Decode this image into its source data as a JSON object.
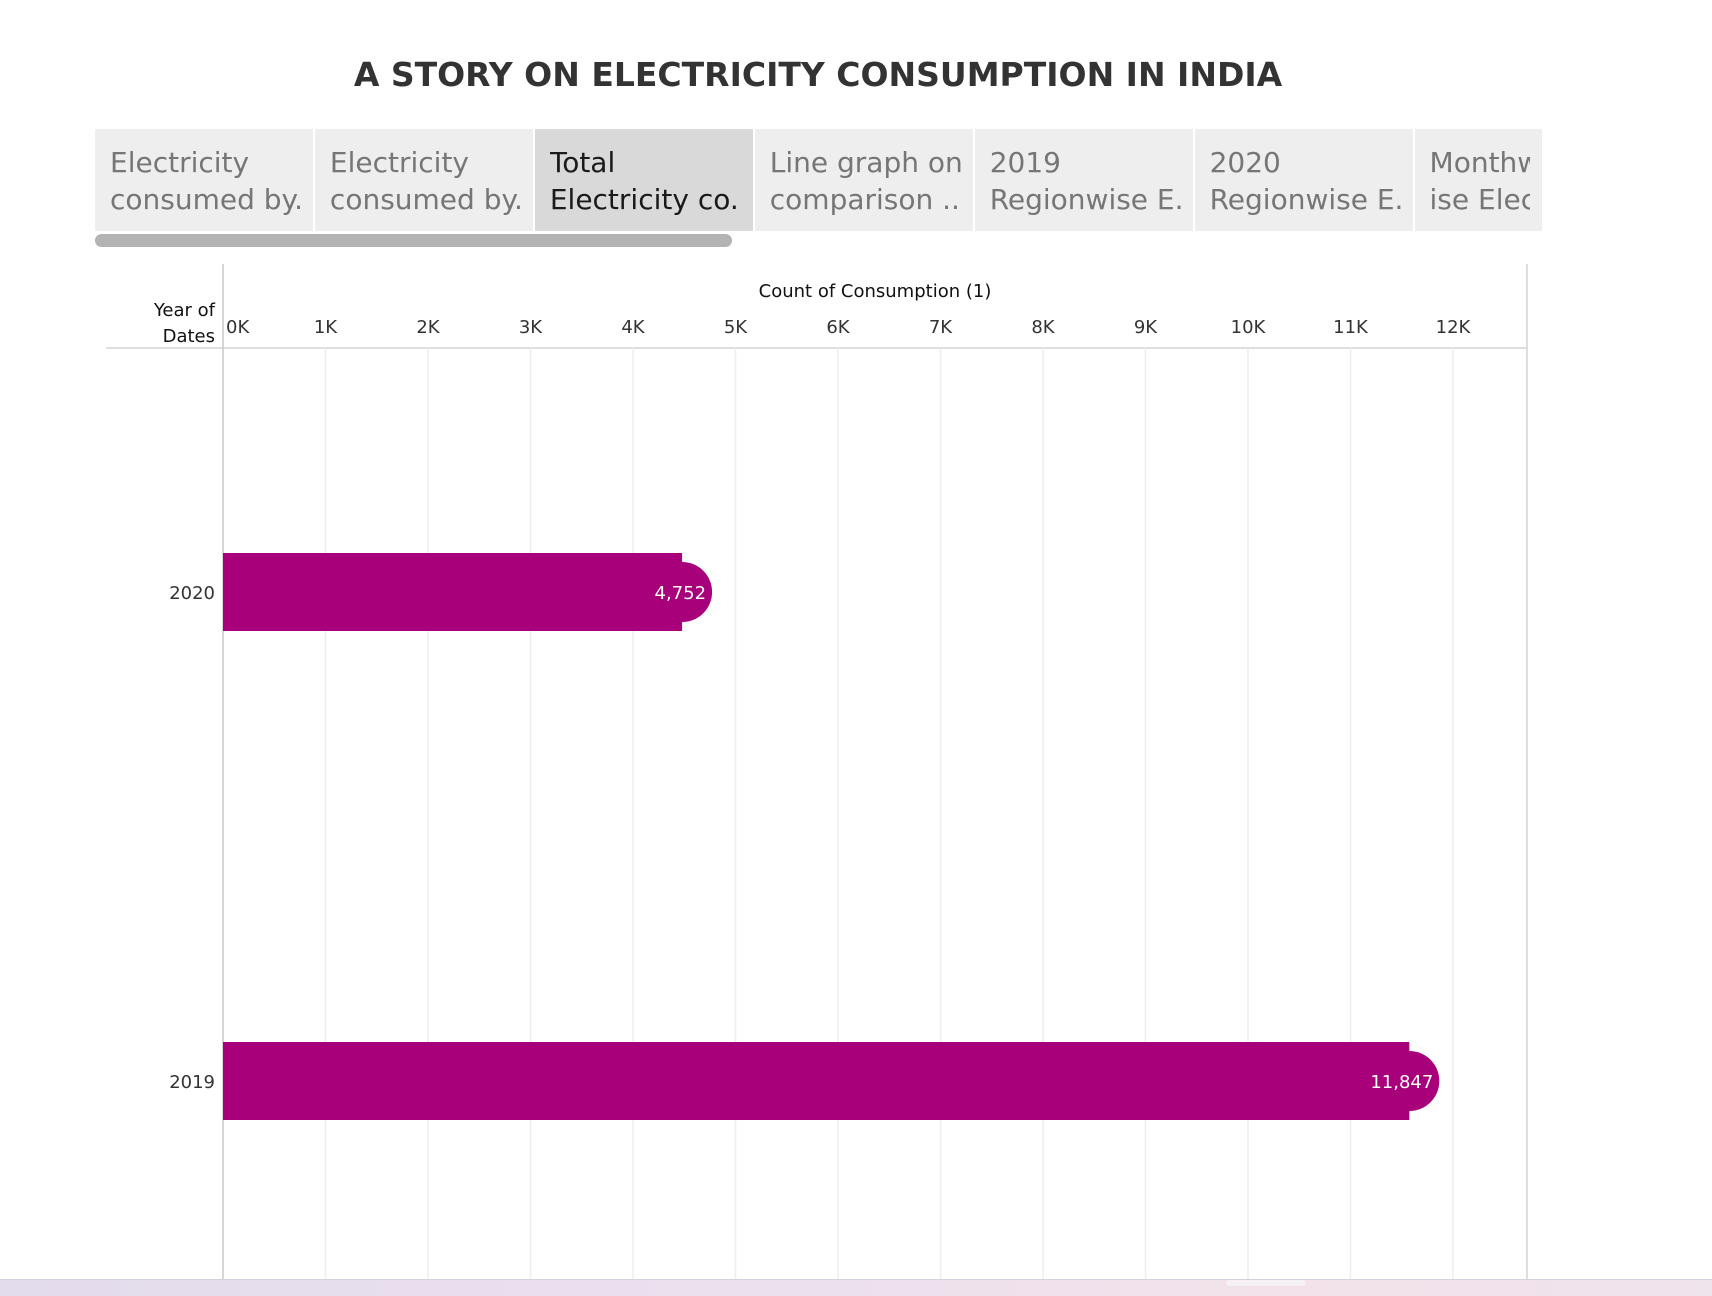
{
  "story": {
    "title": "A STORY ON ELECTRICITY CONSUMPTION IN INDIA",
    "tabs": [
      {
        "line1": "Electricity",
        "line2": "consumed by..",
        "active": false
      },
      {
        "line1": "Electricity",
        "line2": "consumed by..",
        "active": false
      },
      {
        "line1": "Total",
        "line2": "Electricity co..",
        "active": true
      },
      {
        "line1": "Line graph on",
        "line2": "comparison ..",
        "active": false
      },
      {
        "line1": "2019",
        "line2": "Regionwise E..",
        "active": false
      },
      {
        "line1": "2020",
        "line2": "Regionwise E..",
        "active": false
      },
      {
        "line1": "Monthw",
        "line2": "ise Elec..",
        "active": false
      }
    ]
  },
  "chart_data": {
    "type": "bar",
    "orientation": "horizontal",
    "title": "",
    "xlabel": "Count of Consumption (1)",
    "ylabel": "Year of Dates",
    "categories": [
      "2020",
      "2019"
    ],
    "values": [
      4752,
      11847
    ],
    "value_labels": [
      "4,752",
      "11,847"
    ],
    "xlim": [
      0,
      12700
    ],
    "x_ticks": [
      0,
      1000,
      2000,
      3000,
      4000,
      5000,
      6000,
      7000,
      8000,
      9000,
      10000,
      11000,
      12000
    ],
    "x_tick_labels": [
      "0K",
      "1K",
      "2K",
      "3K",
      "4K",
      "5K",
      "6K",
      "7K",
      "8K",
      "9K",
      "10K",
      "11K",
      "12K"
    ],
    "grid": true,
    "bar_color": "#a8007a",
    "legend": "none"
  }
}
